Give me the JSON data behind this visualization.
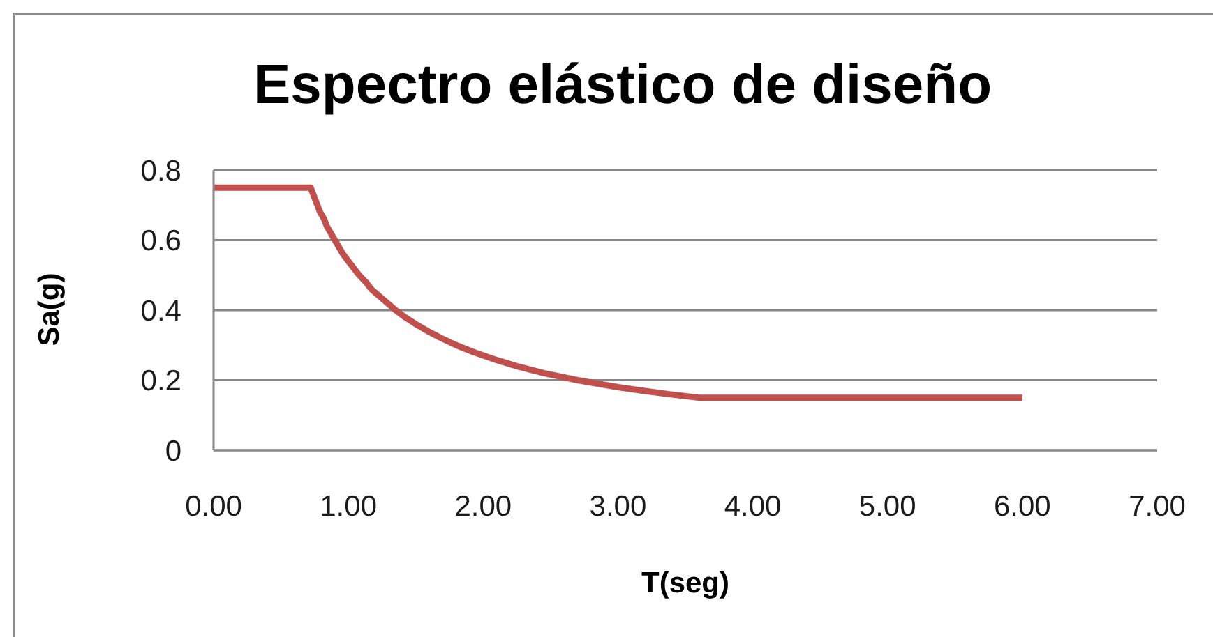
{
  "chart_data": {
    "type": "line",
    "title": "Espectro elástico de diseño",
    "xlabel": "T(seg)",
    "ylabel": "Sa(g)",
    "x": [
      0,
      0.72,
      0.75,
      0.77,
      0.79,
      0.82,
      0.84,
      0.87,
      0.9,
      0.93,
      0.96,
      1.0,
      1.04,
      1.08,
      1.13,
      1.17,
      1.23,
      1.29,
      1.35,
      1.42,
      1.5,
      1.59,
      1.69,
      1.8,
      1.93,
      2.08,
      2.25,
      2.45,
      2.7,
      3.0,
      3.18,
      3.38,
      3.6,
      6.0
    ],
    "series": [
      {
        "color": "#c0504d",
        "values": [
          0.75,
          0.75,
          0.72,
          0.7,
          0.68,
          0.66,
          0.64,
          0.62,
          0.6,
          0.58,
          0.56,
          0.54,
          0.52,
          0.5,
          0.48,
          0.46,
          0.44,
          0.42,
          0.4,
          0.38,
          0.36,
          0.34,
          0.32,
          0.3,
          0.28,
          0.26,
          0.24,
          0.22,
          0.2,
          0.18,
          0.17,
          0.16,
          0.15,
          0.15
        ]
      }
    ],
    "xlim": [
      0,
      7
    ],
    "xticks": [
      {
        "value": 0,
        "label": "0.00"
      },
      {
        "value": 1,
        "label": "1.00"
      },
      {
        "value": 2,
        "label": "2.00"
      },
      {
        "value": 3,
        "label": "3.00"
      },
      {
        "value": 4,
        "label": "4.00"
      },
      {
        "value": 5,
        "label": "5.00"
      },
      {
        "value": 6,
        "label": "6.00"
      },
      {
        "value": 7,
        "label": "7.00"
      }
    ],
    "ylim": [
      0,
      0.8
    ],
    "yticks": [
      0,
      0.2,
      0.4,
      0.6,
      0.8
    ],
    "grid": "y",
    "marker": "none",
    "line_style": "solid"
  }
}
